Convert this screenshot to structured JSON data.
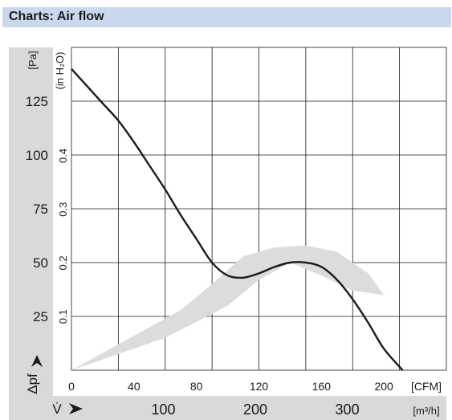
{
  "header": {
    "title": "Charts: Air flow"
  },
  "colors": {
    "header_bg": "#c9d8ec",
    "band_bg": "#d9d9d9",
    "curve": "#1a1a1a",
    "operating_range": "#dcdcdc"
  },
  "chart_data": {
    "type": "line",
    "title": "Air flow",
    "x_axis": {
      "label_unit": "[CFM]",
      "range": [
        0,
        240
      ],
      "ticks": [
        "0",
        "40",
        "80",
        "120",
        "160",
        "200"
      ],
      "tick_values": [
        0,
        40,
        80,
        120,
        160,
        200
      ]
    },
    "x2_axis": {
      "symbol": "V̇",
      "unit": "[m³/h]",
      "ticks": [
        "100",
        "200",
        "300"
      ],
      "tick_values": [
        100,
        200,
        300
      ]
    },
    "y_axis": {
      "unit": "[Pa]",
      "symbol": "Δpf",
      "range": [
        0,
        150
      ],
      "ticks": [
        "25",
        "50",
        "75",
        "100",
        "125"
      ],
      "tick_values": [
        25,
        50,
        75,
        100,
        125
      ]
    },
    "y2_axis": {
      "unit_label": "(in H₂O)",
      "ticks": [
        "0.1",
        "0.2",
        "0.3",
        "0.4"
      ],
      "tick_values": [
        0.1,
        0.2,
        0.3,
        0.4
      ]
    },
    "grid": true,
    "series": [
      {
        "x": [
          0,
          10,
          20,
          30,
          40,
          50,
          60,
          70,
          80,
          90,
          100,
          110,
          120,
          130,
          140,
          150,
          160,
          170,
          180,
          190,
          200,
          212
        ],
        "y": [
          140,
          132,
          124,
          116,
          106,
          95,
          84,
          72,
          61,
          50,
          44,
          43,
          45,
          48,
          50,
          50,
          48,
          42,
          33,
          22,
          10,
          0
        ]
      }
    ],
    "shaded_region": {
      "x": [
        0,
        60,
        100,
        120,
        140,
        160,
        180,
        200,
        190,
        170,
        150,
        130,
        110,
        90,
        70,
        40,
        0
      ],
      "y": [
        0,
        15,
        30,
        42,
        50,
        44,
        37,
        35,
        45,
        55,
        58,
        57,
        53,
        40,
        28,
        16,
        0
      ]
    }
  }
}
